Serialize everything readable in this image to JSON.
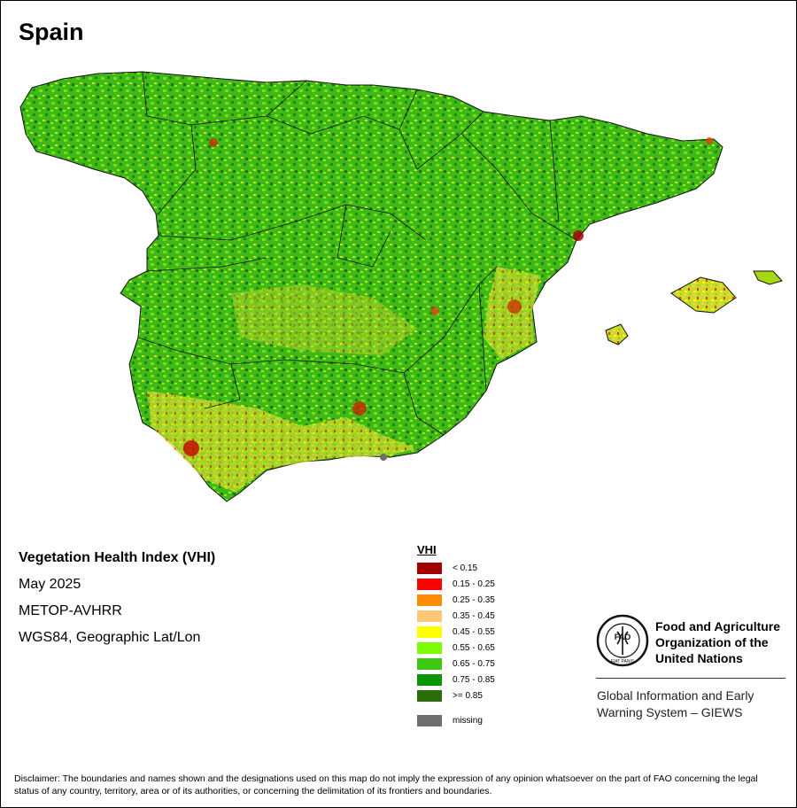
{
  "title": "Spain",
  "info": {
    "product": "Vegetation Health Index (VHI)",
    "date": "May 2025",
    "sensor": "METOP-AVHRR",
    "projection": "WGS84, Geographic Lat/Lon"
  },
  "legend": {
    "title": "VHI",
    "classes": [
      {
        "label": "< 0.15",
        "color": "#a50000"
      },
      {
        "label": "0.15 - 0.25",
        "color": "#ff0000"
      },
      {
        "label": "0.25 - 0.35",
        "color": "#ff8c00"
      },
      {
        "label": "0.35 - 0.45",
        "color": "#ffc878"
      },
      {
        "label": "0.45 - 0.55",
        "color": "#ffff00"
      },
      {
        "label": "0.55 - 0.65",
        "color": "#7cfc00"
      },
      {
        "label": "0.65 - 0.75",
        "color": "#3cc814"
      },
      {
        "label": "0.75 - 0.85",
        "color": "#0a9600"
      },
      {
        "label": ">= 0.85",
        "color": "#2a6e0a"
      }
    ],
    "missing": {
      "label": "missing",
      "color": "#6e6e6e"
    }
  },
  "org": {
    "name_line1": "Food and Agriculture",
    "name_line2": "Organization of the",
    "name_line3": "United Nations",
    "giews_line1": "Global Information and Early",
    "giews_line2": "Warning System – GIEWS",
    "logo_fao": "FAO",
    "logo_motto": "FIAT PANIS"
  },
  "disclaimer": "Disclaimer: The boundaries and names shown and the designations used on this map do not imply the expression of any opinion whatsoever on the part of FAO concerning the legal status of any country, territory, area or of its authorities, or concerning the delimitation of its frontiers and boundaries."
}
